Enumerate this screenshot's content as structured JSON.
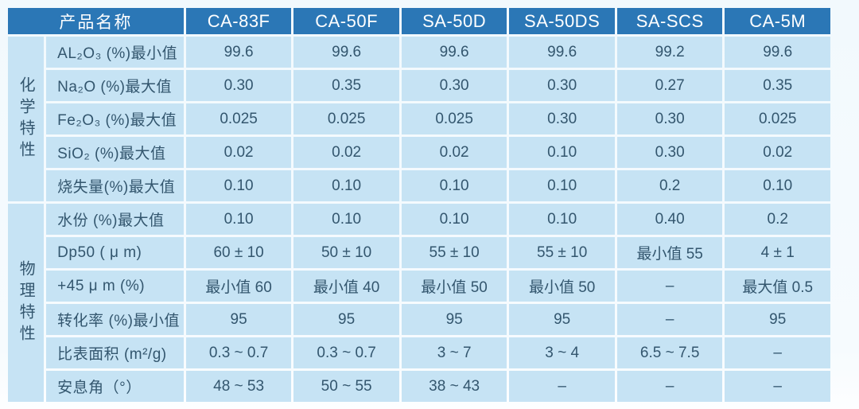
{
  "colors": {
    "header_bg": "#2b77b6",
    "header_text": "#ffffff",
    "cell_bg": "#c6e3f4",
    "cell_text": "#33566e",
    "page_bg": "#f4fafd"
  },
  "table": {
    "header": {
      "product_name_label": "产品名称",
      "products": [
        "CA-83F",
        "CA-50F",
        "SA-50D",
        "SA-50DS",
        "SA-SCS",
        "CA-5M"
      ]
    },
    "sections": [
      {
        "category": "化学特性",
        "rows": [
          {
            "label": "AL₂O₃ (%)最小值",
            "values": [
              "99.6",
              "99.6",
              "99.6",
              "99.6",
              "99.2",
              "99.6"
            ]
          },
          {
            "label": "Na₂O (%)最大值",
            "values": [
              "0.30",
              "0.35",
              "0.30",
              "0.30",
              "0.27",
              "0.35"
            ]
          },
          {
            "label": "Fe₂O₃ (%)最大值",
            "values": [
              "0.025",
              "0.025",
              "0.025",
              "0.30",
              "0.30",
              "0.025"
            ]
          },
          {
            "label": "SiO₂ (%)最大值",
            "values": [
              "0.02",
              "0.02",
              "0.02",
              "0.10",
              "0.30",
              "0.02"
            ]
          },
          {
            "label": "烧失量(%)最大值",
            "values": [
              "0.10",
              "0.10",
              "0.10",
              "0.10",
              "0.2",
              "0.10"
            ]
          }
        ]
      },
      {
        "category": "物理特性",
        "rows": [
          {
            "label": "水份 (%)最大值",
            "values": [
              "0.10",
              "0.10",
              "0.10",
              "0.10",
              "0.40",
              "0.2"
            ]
          },
          {
            "label": "Dp50 ( μ m)",
            "values": [
              "60 ± 10",
              "50 ± 10",
              "55 ± 10",
              "55 ± 10",
              "最小值 55",
              "4 ± 1"
            ]
          },
          {
            "label": "+45 μ m (%)",
            "values": [
              "最小值 60",
              "最小值 40",
              "最小值 50",
              "最小值 50",
              "–",
              "最大值 0.5"
            ]
          },
          {
            "label": "转化率 (%)最小值",
            "values": [
              "95",
              "95",
              "95",
              "95",
              "–",
              "95"
            ]
          },
          {
            "label": "比表面积 (m²/g)",
            "values": [
              "0.3 ~ 0.7",
              "0.3 ~ 0.7",
              "3 ~ 7",
              "3 ~ 4",
              "6.5 ~ 7.5",
              "–"
            ]
          },
          {
            "label": "安息角（°）",
            "values": [
              "48 ~ 53",
              "50 ~ 55",
              "38 ~ 43",
              "–",
              "–",
              "–"
            ]
          }
        ]
      }
    ]
  }
}
